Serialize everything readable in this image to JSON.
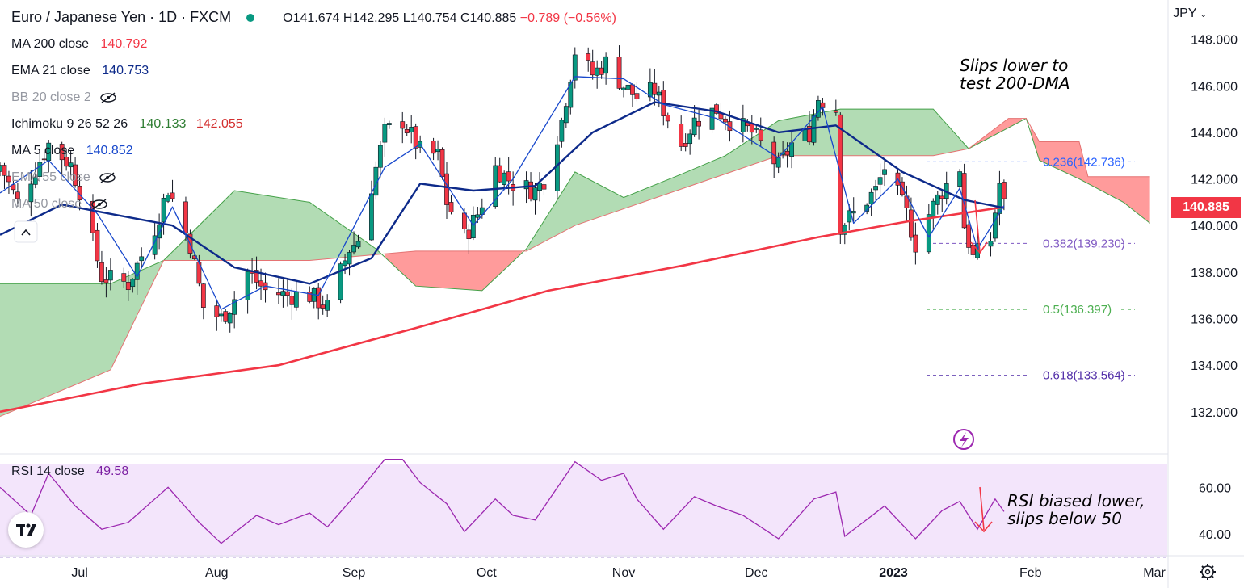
{
  "header": {
    "symbol": "Euro / Japanese Yen · 1D · FXCM",
    "open": "O141.674",
    "high": "H142.295",
    "low": "L140.754",
    "close": "C140.885",
    "change": "−0.789 (−0.56%)"
  },
  "indicators": {
    "ma200": {
      "label": "MA 200 close",
      "value": "140.792",
      "color": "#f23645"
    },
    "ema21": {
      "label": "EMA 21 close",
      "value": "140.753",
      "color": "#0d2a8a"
    },
    "bb": {
      "label": "BB 20 close 2"
    },
    "ichimoku": {
      "label": "Ichimoku 9 26 52 26",
      "value1": "140.133",
      "value2": "142.055"
    },
    "ma5": {
      "label": "MA 5 close",
      "value": "140.852",
      "color": "#1848cc"
    },
    "ema55": {
      "label": "EMA 55 close"
    },
    "ma50": {
      "label": "MA 50 close"
    },
    "rsi": {
      "label": "RSI 14 close",
      "value": "49.58",
      "color": "#7b1fa2"
    }
  },
  "annotations": {
    "price_note_line1": "Slips lower to",
    "price_note_line2": "test 200-DMA",
    "rsi_note_line1": "RSI biased lower,",
    "rsi_note_line2": "slips below 50"
  },
  "price_axis": {
    "currency": "JPY",
    "last_price": "140.885"
  },
  "colors": {
    "up": "#089981",
    "down": "#f23645",
    "cloud_bull": "#a5d6a7",
    "cloud_bear": "#ff8a8a",
    "rsi_band": "#f3e5fb"
  },
  "chart_data": [
    {
      "type": "candlestick",
      "title": "Euro / Japanese Yen · 1D · FXCM",
      "ylim": [
        131.3,
        148.3
      ],
      "y_ticks": [
        "132.000",
        "134.000",
        "136.000",
        "138.000",
        "140.000",
        "142.000",
        "144.000",
        "146.000",
        "148.000"
      ],
      "x_ticks": [
        "Jul",
        "Aug",
        "Sep",
        "Oct",
        "Nov",
        "Dec",
        "2023",
        "Feb",
        "Mar"
      ],
      "x_tick_dates": [
        "2022-07-01",
        "2022-08-01",
        "2022-09-01",
        "2022-10-01",
        "2022-11-01",
        "2022-12-01",
        "2023-01-01",
        "2023-02-01",
        "2023-03-01"
      ],
      "date_range": [
        "2022-06-13",
        "2023-03-03"
      ],
      "close_anchors": [
        [
          "2022-06-13",
          142.6
        ],
        [
          "2022-06-17",
          141.0
        ],
        [
          "2022-06-24",
          143.5
        ],
        [
          "2022-06-29",
          142.6
        ],
        [
          "2022-07-01",
          141.5
        ],
        [
          "2022-07-06",
          137.8
        ],
        [
          "2022-07-12",
          137.5
        ],
        [
          "2022-07-18",
          139.9
        ],
        [
          "2022-07-21",
          141.6
        ],
        [
          "2022-07-26",
          139.2
        ],
        [
          "2022-07-29",
          136.5
        ],
        [
          "2022-08-02",
          136.0
        ],
        [
          "2022-08-04",
          136.5
        ],
        [
          "2022-08-08",
          138.0
        ],
        [
          "2022-08-12",
          137.2
        ],
        [
          "2022-08-17",
          137.0
        ],
        [
          "2022-08-22",
          137.0
        ],
        [
          "2022-08-26",
          136.5
        ],
        [
          "2022-08-31",
          139.0
        ],
        [
          "2022-09-02",
          139.4
        ],
        [
          "2022-09-08",
          144.0
        ],
        [
          "2022-09-12",
          144.5
        ],
        [
          "2022-09-16",
          143.2
        ],
        [
          "2022-09-20",
          143.0
        ],
        [
          "2022-09-22",
          141.0
        ],
        [
          "2022-09-26",
          139.5
        ],
        [
          "2022-09-29",
          140.5
        ],
        [
          "2022-10-03",
          142.5
        ],
        [
          "2022-10-07",
          141.8
        ],
        [
          "2022-10-12",
          141.5
        ],
        [
          "2022-10-14",
          142.0
        ],
        [
          "2022-10-18",
          144.5
        ],
        [
          "2022-10-21",
          147.5
        ],
        [
          "2022-10-25",
          146.5
        ],
        [
          "2022-10-28",
          147.0
        ],
        [
          "2022-11-01",
          146.0
        ],
        [
          "2022-11-04",
          145.5
        ],
        [
          "2022-11-08",
          145.8
        ],
        [
          "2022-11-10",
          145.0
        ],
        [
          "2022-11-14",
          143.5
        ],
        [
          "2022-11-17",
          144.5
        ],
        [
          "2022-11-22",
          145.0
        ],
        [
          "2022-11-25",
          144.5
        ],
        [
          "2022-11-30",
          144.0
        ],
        [
          "2022-12-02",
          143.5
        ],
        [
          "2022-12-06",
          142.5
        ],
        [
          "2022-12-09",
          143.5
        ],
        [
          "2022-12-13",
          144.0
        ],
        [
          "2022-12-15",
          145.5
        ],
        [
          "2022-12-19",
          145.0
        ],
        [
          "2022-12-20",
          140.0
        ],
        [
          "2022-12-23",
          140.5
        ],
        [
          "2022-12-28",
          141.5
        ],
        [
          "2022-12-30",
          142.5
        ],
        [
          "2023-01-04",
          140.5
        ],
        [
          "2023-01-06",
          139.2
        ],
        [
          "2023-01-09",
          140.5
        ],
        [
          "2023-01-12",
          141.5
        ],
        [
          "2023-01-16",
          142.5
        ],
        [
          "2023-01-17",
          140.0
        ],
        [
          "2023-01-19",
          138.6
        ],
        [
          "2023-01-23",
          139.4
        ],
        [
          "2023-01-25",
          141.8
        ],
        [
          "2023-01-26",
          140.885
        ]
      ],
      "lines": [
        {
          "name": "MA 200 close",
          "color": "#f23645",
          "points": [
            [
              "2022-06-13",
              132.0
            ],
            [
              "2022-07-15",
              133.2
            ],
            [
              "2022-08-15",
              134.0
            ],
            [
              "2022-09-15",
              135.6
            ],
            [
              "2022-10-15",
              137.2
            ],
            [
              "2022-11-15",
              138.3
            ],
            [
              "2022-12-15",
              139.5
            ],
            [
              "2023-01-05",
              140.2
            ],
            [
              "2023-01-26",
              140.792
            ]
          ]
        },
        {
          "name": "EMA 21 close",
          "color": "#0d2a8a",
          "points": [
            [
              "2022-06-13",
              139.6
            ],
            [
              "2022-06-27",
              140.9
            ],
            [
              "2022-07-08",
              140.5
            ],
            [
              "2022-07-22",
              140.0
            ],
            [
              "2022-08-05",
              138.2
            ],
            [
              "2022-08-22",
              137.5
            ],
            [
              "2022-09-05",
              138.6
            ],
            [
              "2022-09-16",
              141.8
            ],
            [
              "2022-09-28",
              141.5
            ],
            [
              "2022-10-12",
              141.7
            ],
            [
              "2022-10-25",
              144.0
            ],
            [
              "2022-11-08",
              145.3
            ],
            [
              "2022-11-22",
              144.9
            ],
            [
              "2022-12-06",
              144.0
            ],
            [
              "2022-12-19",
              144.3
            ],
            [
              "2023-01-03",
              142.3
            ],
            [
              "2023-01-17",
              141.1
            ],
            [
              "2023-01-26",
              140.753
            ]
          ]
        },
        {
          "name": "MA 5 close",
          "color": "#1848cc",
          "points": [
            [
              "2022-06-13",
              141.4
            ],
            [
              "2022-06-24",
              142.8
            ],
            [
              "2022-07-05",
              140.5
            ],
            [
              "2022-07-14",
              137.8
            ],
            [
              "2022-07-22",
              140.8
            ],
            [
              "2022-08-02",
              136.4
            ],
            [
              "2022-08-12",
              137.4
            ],
            [
              "2022-08-24",
              137.0
            ],
            [
              "2022-09-08",
              142.5
            ],
            [
              "2022-09-16",
              143.5
            ],
            [
              "2022-09-28",
              140.0
            ],
            [
              "2022-10-07",
              142.0
            ],
            [
              "2022-10-21",
              146.4
            ],
            [
              "2022-11-01",
              146.3
            ],
            [
              "2022-11-10",
              145.2
            ],
            [
              "2022-11-22",
              144.6
            ],
            [
              "2022-12-06",
              142.9
            ],
            [
              "2022-12-16",
              145.1
            ],
            [
              "2022-12-23",
              140.1
            ],
            [
              "2023-01-02",
              142.0
            ],
            [
              "2023-01-09",
              139.5
            ],
            [
              "2023-01-16",
              141.6
            ],
            [
              "2023-01-20",
              139.0
            ],
            [
              "2023-01-26",
              140.852
            ]
          ]
        }
      ],
      "ichimoku_span_a": [
        [
          "2022-06-13",
          137.5
        ],
        [
          "2022-07-08",
          137.5
        ],
        [
          "2022-07-20",
          138.5
        ],
        [
          "2022-08-05",
          141.5
        ],
        [
          "2022-08-22",
          141.0
        ],
        [
          "2022-09-06",
          139.0
        ],
        [
          "2022-09-15",
          137.4
        ],
        [
          "2022-09-30",
          137.2
        ],
        [
          "2022-10-10",
          139.0
        ],
        [
          "2022-10-21",
          142.3
        ],
        [
          "2022-11-01",
          141.2
        ],
        [
          "2022-11-14",
          142.2
        ],
        [
          "2022-11-24",
          143.0
        ],
        [
          "2022-12-06",
          144.5
        ],
        [
          "2022-12-20",
          145.0
        ],
        [
          "2023-01-10",
          145.0
        ],
        [
          "2023-01-18",
          143.3
        ],
        [
          "2023-01-27",
          144.2
        ],
        [
          "2023-01-31",
          144.6
        ],
        [
          "2023-02-03",
          142.8
        ],
        [
          "2023-02-12",
          142.0
        ],
        [
          "2023-02-22",
          141.0
        ],
        [
          "2023-02-28",
          140.1
        ]
      ],
      "ichimoku_span_b": [
        [
          "2022-06-13",
          131.8
        ],
        [
          "2022-07-08",
          133.8
        ],
        [
          "2022-07-20",
          138.5
        ],
        [
          "2022-08-22",
          138.5
        ],
        [
          "2022-09-15",
          138.9
        ],
        [
          "2022-10-10",
          138.9
        ],
        [
          "2022-10-21",
          140.0
        ],
        [
          "2022-12-06",
          143.0
        ],
        [
          "2023-01-10",
          143.0
        ],
        [
          "2023-01-18",
          143.3
        ],
        [
          "2023-01-27",
          144.6
        ],
        [
          "2023-01-31",
          144.6
        ],
        [
          "2023-02-03",
          143.6
        ],
        [
          "2023-02-12",
          143.6
        ],
        [
          "2023-02-14",
          142.1
        ],
        [
          "2023-02-28",
          142.1
        ]
      ],
      "fibonacci": [
        {
          "label": "0.236(142.736)",
          "level": 142.736,
          "color": "#2962ff"
        },
        {
          "label": "0.382(139.230)",
          "level": 139.23,
          "color": "#7e57c2"
        },
        {
          "label": "0.5(136.397)",
          "level": 136.397,
          "color": "#4caf50"
        },
        {
          "label": "0.618(133.564)",
          "level": 133.564,
          "color": "#512da8"
        }
      ]
    },
    {
      "type": "line",
      "title": "RSI 14 close",
      "ylim": [
        30,
        75
      ],
      "y_ticks": [
        "40.00",
        "60.00"
      ],
      "bands": [
        30,
        70
      ],
      "series": [
        {
          "name": "RSI 14 close",
          "color": "#9c27b0",
          "points": [
            [
              "2022-06-13",
              60
            ],
            [
              "2022-06-20",
              48
            ],
            [
              "2022-06-24",
              66
            ],
            [
              "2022-06-30",
              52
            ],
            [
              "2022-07-06",
              42
            ],
            [
              "2022-07-12",
              45
            ],
            [
              "2022-07-21",
              60
            ],
            [
              "2022-07-28",
              45
            ],
            [
              "2022-08-02",
              36
            ],
            [
              "2022-08-10",
              48
            ],
            [
              "2022-08-15",
              44
            ],
            [
              "2022-08-22",
              49
            ],
            [
              "2022-08-26",
              43
            ],
            [
              "2022-09-02",
              58
            ],
            [
              "2022-09-08",
              72
            ],
            [
              "2022-09-12",
              72
            ],
            [
              "2022-09-16",
              62
            ],
            [
              "2022-09-22",
              53
            ],
            [
              "2022-09-26",
              41
            ],
            [
              "2022-10-03",
              55
            ],
            [
              "2022-10-07",
              48
            ],
            [
              "2022-10-12",
              46
            ],
            [
              "2022-10-21",
              71
            ],
            [
              "2022-10-27",
              63
            ],
            [
              "2022-11-01",
              66
            ],
            [
              "2022-11-04",
              55
            ],
            [
              "2022-11-10",
              42
            ],
            [
              "2022-11-17",
              56
            ],
            [
              "2022-11-22",
              52
            ],
            [
              "2022-11-28",
              48
            ],
            [
              "2022-12-06",
              38
            ],
            [
              "2022-12-14",
              55
            ],
            [
              "2022-12-19",
              58
            ],
            [
              "2022-12-21",
              39
            ],
            [
              "2022-12-30",
              52
            ],
            [
              "2023-01-06",
              38
            ],
            [
              "2023-01-12",
              50
            ],
            [
              "2023-01-16",
              54
            ],
            [
              "2023-01-20",
              42
            ],
            [
              "2023-01-24",
              55
            ],
            [
              "2023-01-26",
              49.58
            ]
          ]
        }
      ]
    }
  ]
}
